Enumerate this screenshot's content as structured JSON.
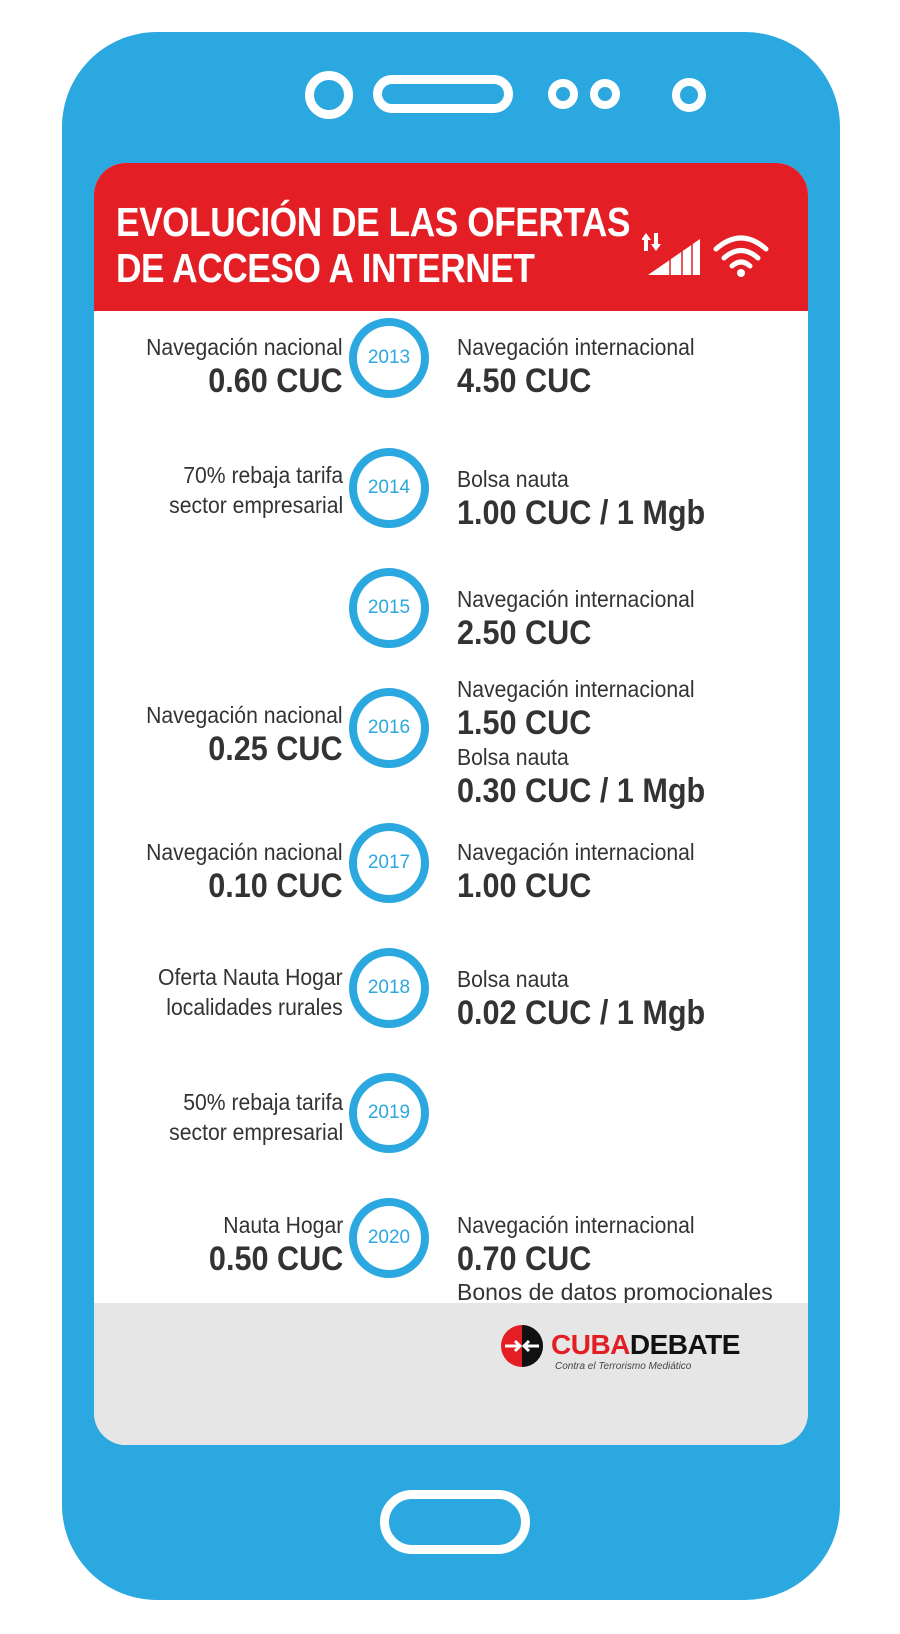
{
  "header": {
    "title_line1": "EVOLUCIÓN DE LAS OFERTAS",
    "title_line2": "DE ACCESO A INTERNET"
  },
  "timeline": [
    {
      "year": "2013",
      "left": [
        {
          "t": "lbl",
          "text": "Navegación nacional"
        },
        {
          "t": "val",
          "text": "0.60 CUC"
        }
      ],
      "right": [
        {
          "t": "lbl",
          "text": "Navegación internacional"
        },
        {
          "t": "val",
          "text": "4.50 CUC"
        }
      ]
    },
    {
      "year": "2014",
      "left": [
        {
          "t": "lbl",
          "text": "70% rebaja tarifa"
        },
        {
          "t": "lbl",
          "text": "sector empresarial"
        }
      ],
      "right": [
        {
          "t": "lbl",
          "text": "Bolsa nauta"
        },
        {
          "t": "val",
          "text": "1.00 CUC / 1 Mgb"
        }
      ]
    },
    {
      "year": "2015",
      "left": [],
      "right": [
        {
          "t": "lbl",
          "text": "Navegación internacional"
        },
        {
          "t": "val",
          "text": "2.50 CUC"
        }
      ]
    },
    {
      "year": "2016",
      "left": [
        {
          "t": "lbl",
          "text": "Navegación nacional"
        },
        {
          "t": "val",
          "text": "0.25 CUC"
        }
      ],
      "right": [
        {
          "t": "lbl",
          "text": "Navegación internacional"
        },
        {
          "t": "val",
          "text": "1.50 CUC"
        },
        {
          "t": "lbl",
          "text": "Bolsa nauta"
        },
        {
          "t": "val",
          "text": "0.30 CUC / 1 Mgb"
        }
      ]
    },
    {
      "year": "2017",
      "left": [
        {
          "t": "lbl",
          "text": "Navegación nacional"
        },
        {
          "t": "val",
          "text": "0.10 CUC"
        }
      ],
      "right": [
        {
          "t": "lbl",
          "text": "Navegación internacional"
        },
        {
          "t": "val",
          "text": "1.00 CUC"
        }
      ]
    },
    {
      "year": "2018",
      "left": [
        {
          "t": "lbl",
          "text": "Oferta Nauta Hogar"
        },
        {
          "t": "lbl",
          "text": "localidades rurales"
        }
      ],
      "right": [
        {
          "t": "lbl",
          "text": "Bolsa nauta"
        },
        {
          "t": "val",
          "text": "0.02 CUC / 1 Mgb"
        }
      ]
    },
    {
      "year": "2019",
      "left": [
        {
          "t": "lbl",
          "text": "50% rebaja tarifa"
        },
        {
          "t": "lbl",
          "text": "sector empresarial"
        }
      ],
      "right": []
    },
    {
      "year": "2020",
      "left": [
        {
          "t": "lbl",
          "text": "Nauta Hogar"
        },
        {
          "t": "val",
          "text": "0.50 CUC"
        }
      ],
      "right": [
        {
          "t": "lbl",
          "text": "Navegación internacional"
        },
        {
          "t": "val",
          "text": "0.70 CUC"
        },
        {
          "t": "sub",
          "text": "Bonos de datos promocionales"
        }
      ]
    }
  ],
  "footer": {
    "logo_cuba": "CUBA",
    "logo_debate": "DEBATE",
    "logo_tagline": "Contra el Terrorismo Mediático"
  },
  "colors": {
    "phone_blue": "#2aa8df",
    "header_red": "#e31e24",
    "footer_gray": "#e6e6e6"
  },
  "icons": [
    "signal-transfer-icon",
    "cell-signal-icon",
    "wifi-icon",
    "cubadebate-logo-icon"
  ]
}
